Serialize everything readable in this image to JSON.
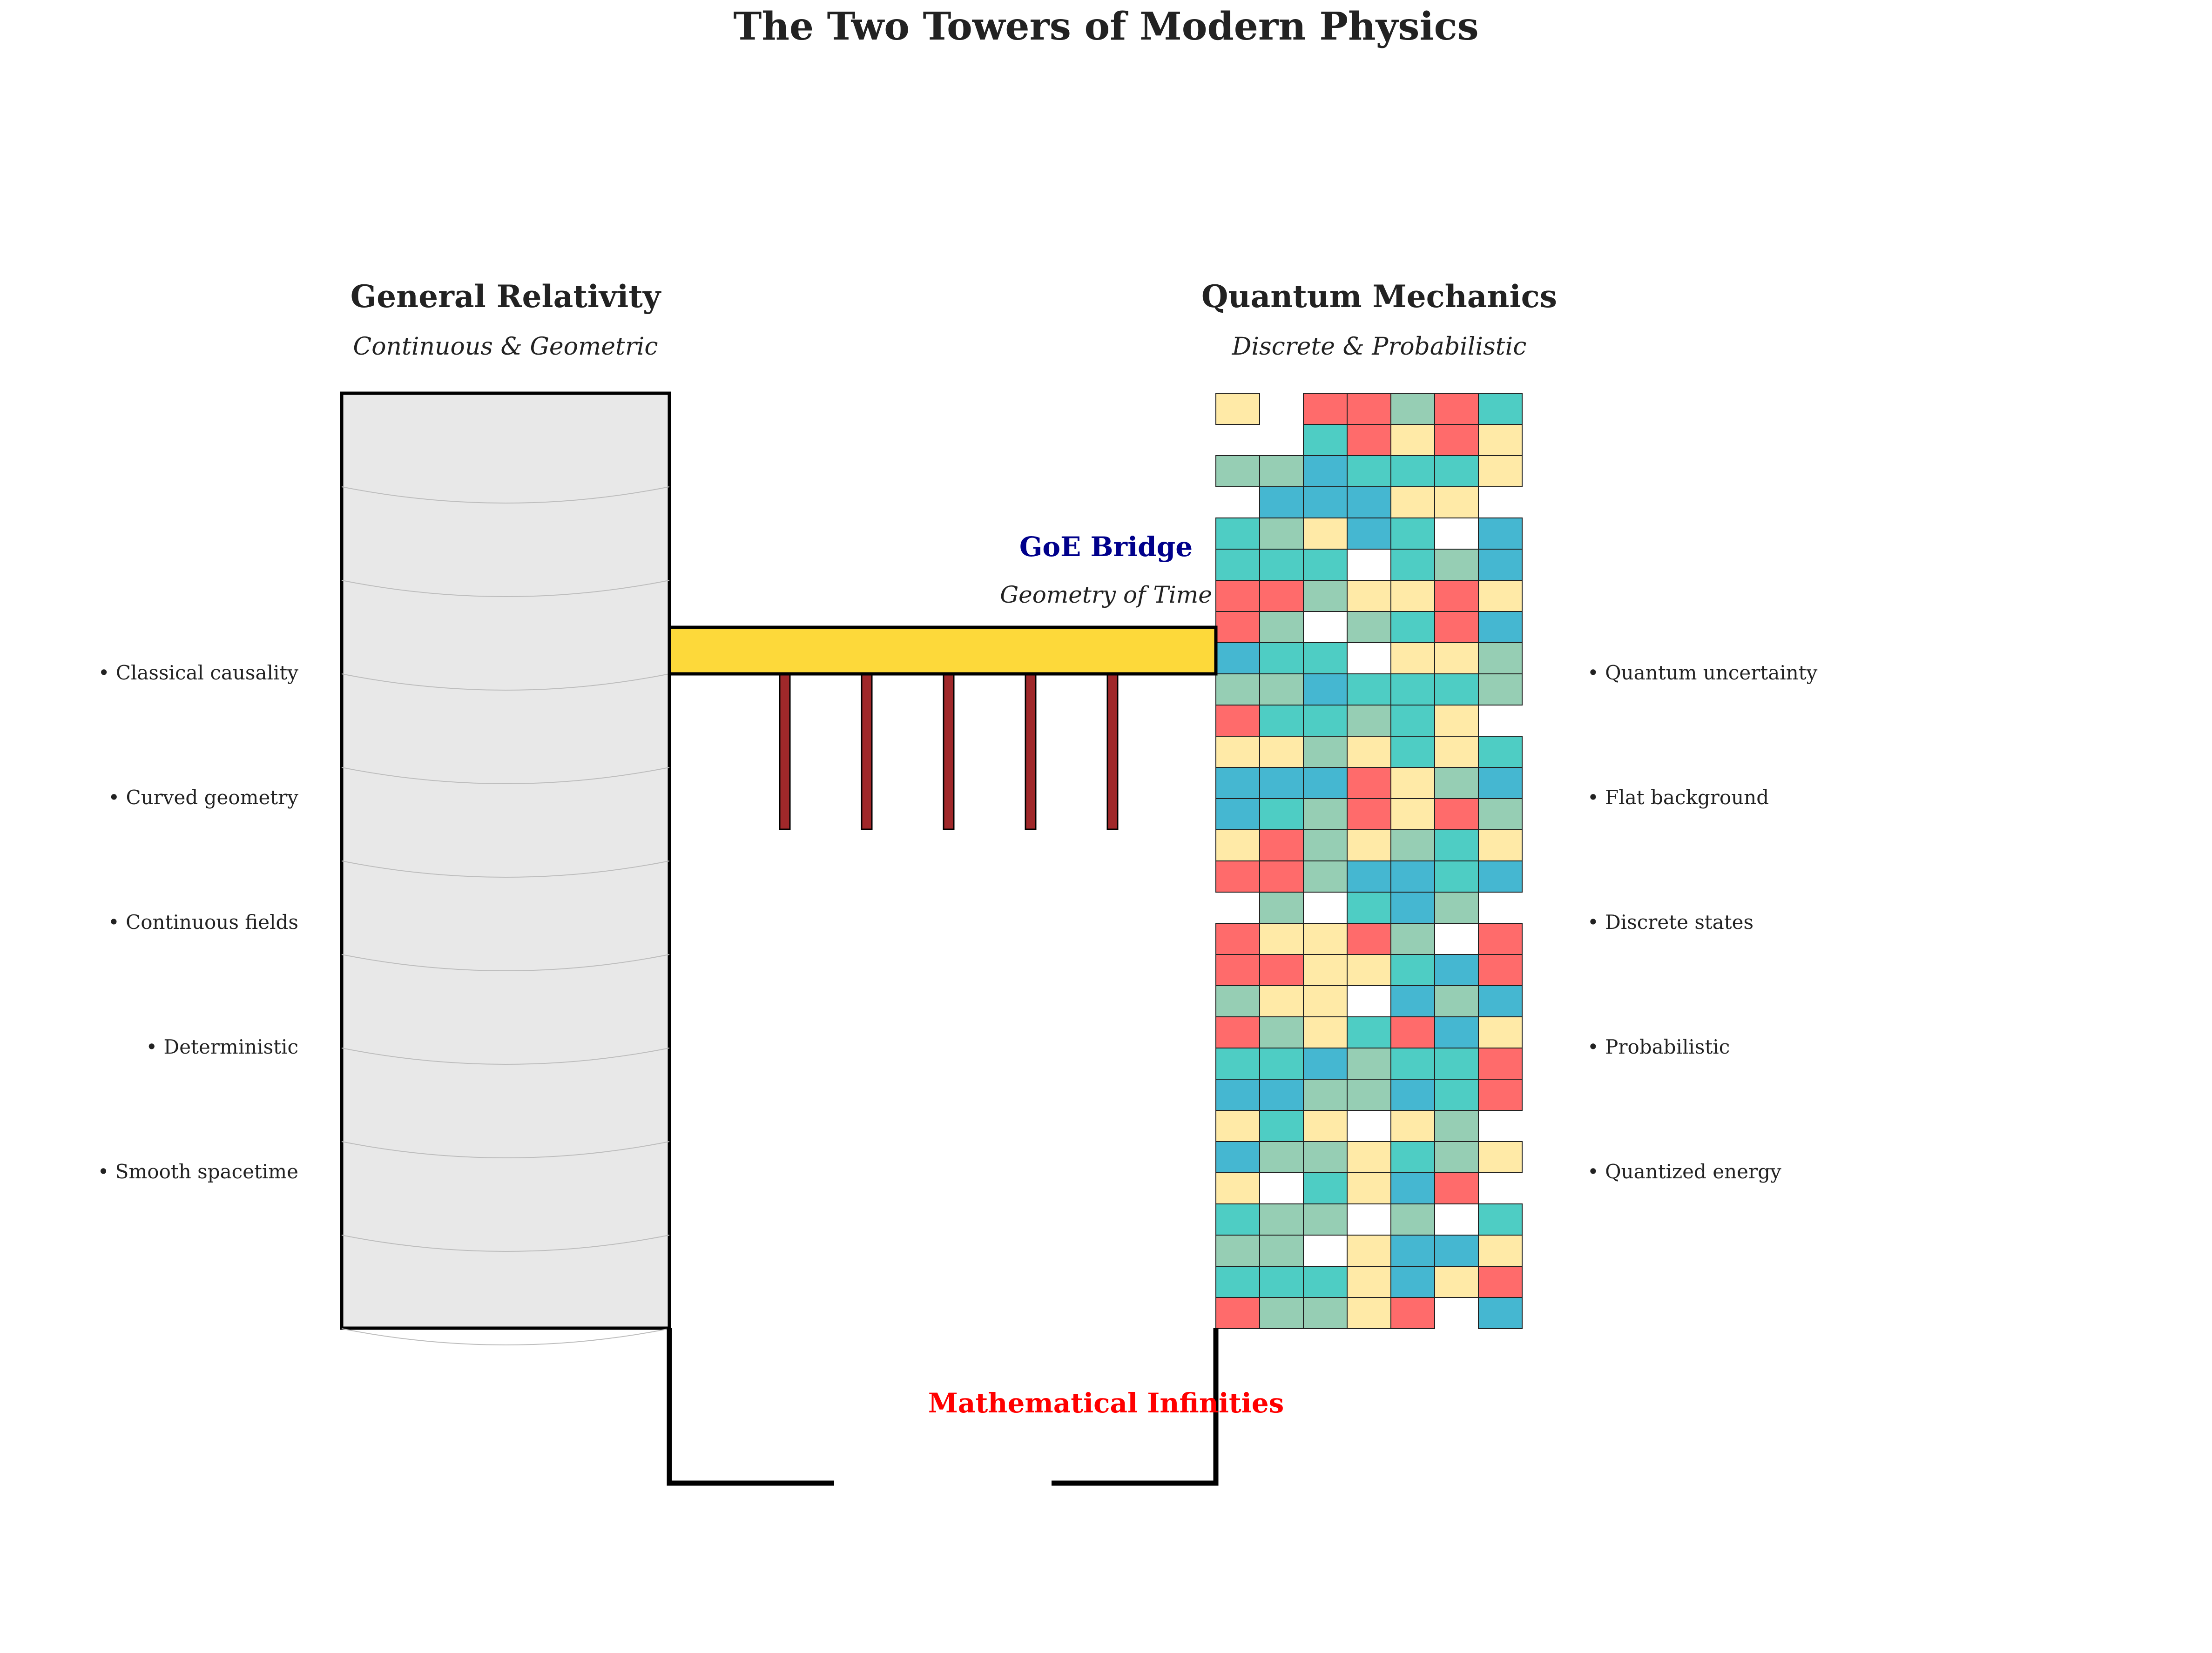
{
  "title": "The Two Towers of Modern Physics",
  "left_tower": {
    "title": "General Relativity",
    "subtitle": "Continuous & Geometric",
    "properties": [
      "• Classical causality",
      "• Curved geometry",
      "• Continuous fields",
      "• Deterministic",
      "• Smooth spacetime"
    ],
    "fill_color": "#e8e8e8"
  },
  "right_tower": {
    "title": "Quantum Mechanics",
    "subtitle": "Discrete & Probabilistic",
    "properties": [
      "• Quantum uncertainty",
      "• Flat background",
      "• Discrete states",
      "• Probabilistic",
      "• Quantized energy"
    ],
    "grid_rows": [
      "Y-RRGRT",
      "--TRYRY",
      "GGBTTTY",
      "-BBBYY-",
      "TGYBTWB",
      "TTTWTGB",
      "RRGYYRY",
      "RGWGTRB",
      "BTTWYYG",
      "GGBTTTG",
      "RTTGTY-",
      "YYGYTYT",
      "BBBRYGB",
      "BTGRYRG",
      "YRGYGTY",
      "RRGBBTB",
      "-GWTBG-",
      "RYYRGWR",
      "RRYYTBR",
      "GYYWBGB",
      "RGYTRBY",
      "TTBGTTR",
      "BBGGBTR",
      "YTYWYG-",
      "BGGYTGY",
      "YWTYBR-",
      "TGGWGWT",
      "GGWYBBY",
      "TTTYBYR",
      "RGGYR-B"
    ],
    "palette": {
      "R": "#ff6b6b",
      "T": "#4ecdc4",
      "B": "#45b7d1",
      "G": "#96ceb4",
      "Y": "#ffeaa7",
      "W": "#ffffff"
    }
  },
  "bridge": {
    "label": "GoE Bridge",
    "sublabel": "Geometry of Time",
    "deck_color": "#fdd93a",
    "support_color": "#a0282a",
    "supports": 5
  },
  "gap": {
    "label": "Mathematical Infinities",
    "label_color": "#ff0000"
  },
  "colors": {
    "title": "#222222",
    "bridge_label": "#00008b"
  }
}
